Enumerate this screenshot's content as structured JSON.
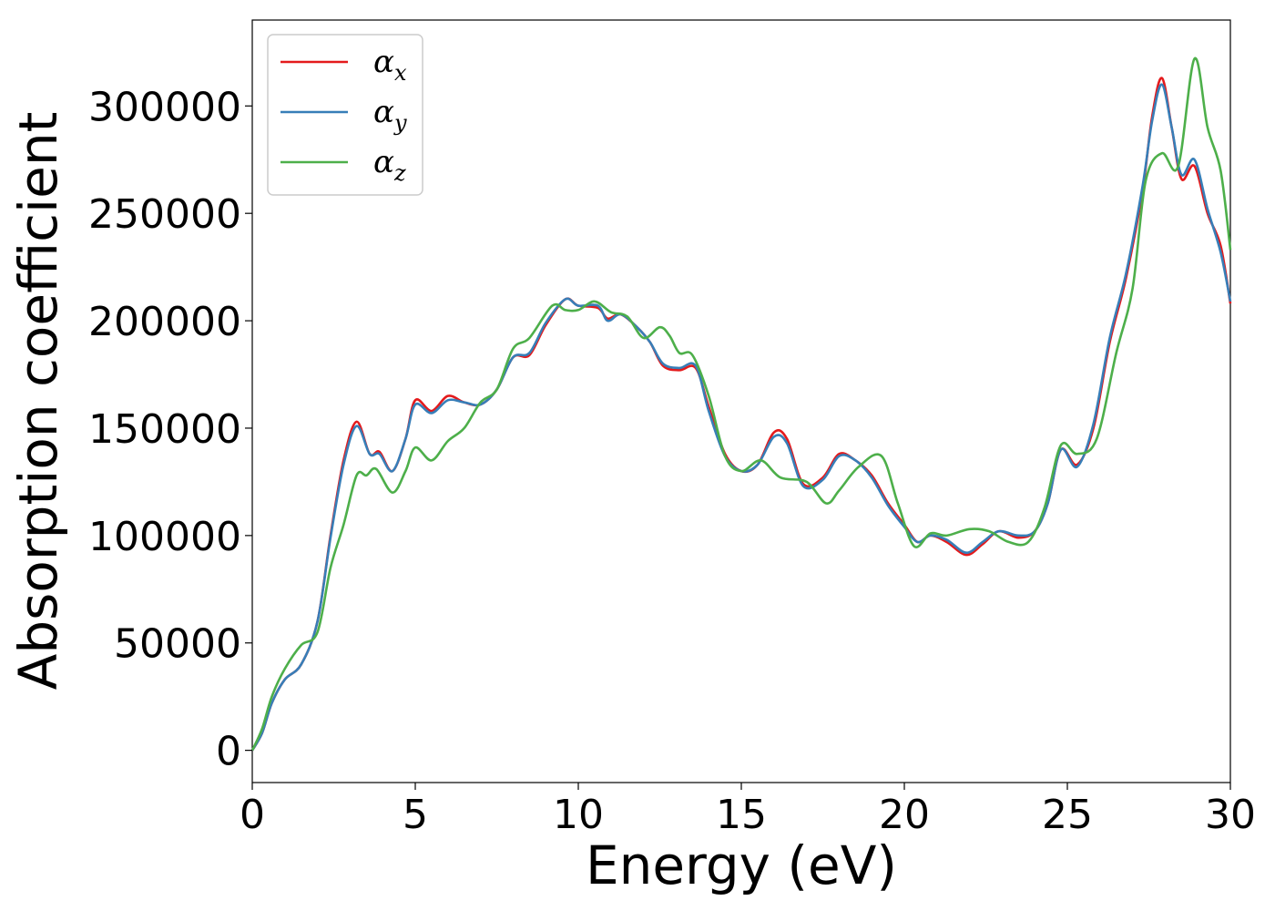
{
  "chart_data": {
    "type": "line",
    "xlabel": "Energy (eV)",
    "ylabel": "Absorption coefficient",
    "xlim": [
      0,
      30
    ],
    "ylim": [
      -15000,
      340000
    ],
    "xticks": [
      0,
      5,
      10,
      15,
      20,
      25,
      30
    ],
    "yticks": [
      0,
      50000,
      100000,
      150000,
      200000,
      250000,
      300000
    ],
    "xtick_labels": [
      "0",
      "5",
      "10",
      "15",
      "20",
      "25",
      "30"
    ],
    "ytick_labels": [
      "0",
      "50000",
      "100000",
      "150000",
      "200000",
      "250000",
      "300000"
    ],
    "grid": false,
    "legend": "upper-left",
    "series": [
      {
        "name": "αx",
        "symbol": "α",
        "sub": "x",
        "color": "#e41a1c",
        "points": [
          [
            0,
            0
          ],
          [
            0.3,
            8000
          ],
          [
            0.6,
            22000
          ],
          [
            1,
            33000
          ],
          [
            1.5,
            40000
          ],
          [
            2,
            60000
          ],
          [
            2.4,
            100000
          ],
          [
            2.8,
            135000
          ],
          [
            3.2,
            153000
          ],
          [
            3.6,
            138000
          ],
          [
            3.9,
            139000
          ],
          [
            4.3,
            130000
          ],
          [
            4.7,
            145000
          ],
          [
            5,
            163000
          ],
          [
            5.5,
            158000
          ],
          [
            6,
            165000
          ],
          [
            6.5,
            162000
          ],
          [
            7,
            161000
          ],
          [
            7.5,
            168000
          ],
          [
            8,
            183000
          ],
          [
            8.5,
            184000
          ],
          [
            9,
            198000
          ],
          [
            9.6,
            210000
          ],
          [
            10,
            207000
          ],
          [
            10.6,
            206000
          ],
          [
            10.9,
            201000
          ],
          [
            11.3,
            203000
          ],
          [
            11.8,
            197000
          ],
          [
            12.2,
            190000
          ],
          [
            12.6,
            179000
          ],
          [
            13.1,
            177000
          ],
          [
            13.6,
            178000
          ],
          [
            14,
            160000
          ],
          [
            14.5,
            138000
          ],
          [
            15,
            130000
          ],
          [
            15.5,
            133000
          ],
          [
            16,
            148000
          ],
          [
            16.4,
            145000
          ],
          [
            16.9,
            124000
          ],
          [
            17.5,
            127000
          ],
          [
            18,
            138000
          ],
          [
            18.5,
            135000
          ],
          [
            19,
            128000
          ],
          [
            19.5,
            115000
          ],
          [
            20,
            105000
          ],
          [
            20.4,
            97000
          ],
          [
            20.8,
            100000
          ],
          [
            21.3,
            97000
          ],
          [
            21.9,
            91000
          ],
          [
            22.4,
            96000
          ],
          [
            22.9,
            102000
          ],
          [
            23.5,
            99000
          ],
          [
            24,
            102000
          ],
          [
            24.4,
            115000
          ],
          [
            24.8,
            140000
          ],
          [
            25.3,
            133000
          ],
          [
            25.8,
            150000
          ],
          [
            26.3,
            190000
          ],
          [
            26.8,
            220000
          ],
          [
            27.3,
            260000
          ],
          [
            27.6,
            295000
          ],
          [
            27.9,
            313000
          ],
          [
            28.2,
            290000
          ],
          [
            28.5,
            266000
          ],
          [
            28.9,
            272000
          ],
          [
            29.3,
            250000
          ],
          [
            29.7,
            235000
          ],
          [
            30,
            208000
          ]
        ]
      },
      {
        "name": "αy",
        "symbol": "α",
        "sub": "y",
        "color": "#377eb8",
        "points": [
          [
            0,
            0
          ],
          [
            0.3,
            8000
          ],
          [
            0.6,
            22000
          ],
          [
            1,
            33000
          ],
          [
            1.5,
            40000
          ],
          [
            2,
            60000
          ],
          [
            2.4,
            99000
          ],
          [
            2.8,
            133000
          ],
          [
            3.2,
            151000
          ],
          [
            3.6,
            138000
          ],
          [
            3.9,
            138000
          ],
          [
            4.3,
            130000
          ],
          [
            4.7,
            145000
          ],
          [
            5,
            161000
          ],
          [
            5.5,
            157000
          ],
          [
            6,
            163000
          ],
          [
            6.5,
            162000
          ],
          [
            7,
            161000
          ],
          [
            7.5,
            168000
          ],
          [
            8,
            183000
          ],
          [
            8.5,
            185000
          ],
          [
            9,
            199000
          ],
          [
            9.6,
            210000
          ],
          [
            10,
            207000
          ],
          [
            10.6,
            207000
          ],
          [
            10.9,
            200000
          ],
          [
            11.3,
            203000
          ],
          [
            11.8,
            197000
          ],
          [
            12.2,
            190000
          ],
          [
            12.6,
            180000
          ],
          [
            13.1,
            178000
          ],
          [
            13.6,
            179000
          ],
          [
            14,
            158000
          ],
          [
            14.5,
            137000
          ],
          [
            15,
            130000
          ],
          [
            15.5,
            133000
          ],
          [
            16,
            146000
          ],
          [
            16.4,
            143000
          ],
          [
            16.9,
            123000
          ],
          [
            17.5,
            126000
          ],
          [
            18,
            137000
          ],
          [
            18.5,
            135000
          ],
          [
            19,
            127000
          ],
          [
            19.5,
            114000
          ],
          [
            20,
            104000
          ],
          [
            20.4,
            97000
          ],
          [
            20.8,
            100000
          ],
          [
            21.3,
            98000
          ],
          [
            21.9,
            92000
          ],
          [
            22.4,
            97000
          ],
          [
            22.9,
            102000
          ],
          [
            23.5,
            100000
          ],
          [
            24,
            102000
          ],
          [
            24.4,
            115000
          ],
          [
            24.8,
            140000
          ],
          [
            25.3,
            132000
          ],
          [
            25.8,
            152000
          ],
          [
            26.3,
            192000
          ],
          [
            26.8,
            222000
          ],
          [
            27.3,
            262000
          ],
          [
            27.6,
            293000
          ],
          [
            27.9,
            310000
          ],
          [
            28.2,
            290000
          ],
          [
            28.5,
            268000
          ],
          [
            28.9,
            275000
          ],
          [
            29.3,
            252000
          ],
          [
            29.7,
            232000
          ],
          [
            30,
            209000
          ]
        ]
      },
      {
        "name": "αz",
        "symbol": "α",
        "sub": "z",
        "color": "#4daf4a",
        "points": [
          [
            0,
            0
          ],
          [
            0.3,
            10000
          ],
          [
            0.6,
            25000
          ],
          [
            1,
            38000
          ],
          [
            1.5,
            49000
          ],
          [
            2,
            55000
          ],
          [
            2.4,
            85000
          ],
          [
            2.8,
            105000
          ],
          [
            3.2,
            128000
          ],
          [
            3.5,
            128000
          ],
          [
            3.8,
            131000
          ],
          [
            4.3,
            120000
          ],
          [
            4.7,
            130000
          ],
          [
            5,
            141000
          ],
          [
            5.5,
            135000
          ],
          [
            6,
            144000
          ],
          [
            6.5,
            150000
          ],
          [
            7,
            162000
          ],
          [
            7.5,
            168000
          ],
          [
            8,
            187000
          ],
          [
            8.5,
            192000
          ],
          [
            9.2,
            207000
          ],
          [
            9.6,
            205000
          ],
          [
            10,
            205000
          ],
          [
            10.5,
            209000
          ],
          [
            11,
            204000
          ],
          [
            11.5,
            202000
          ],
          [
            12,
            192000
          ],
          [
            12.5,
            197000
          ],
          [
            12.8,
            193000
          ],
          [
            13.1,
            185000
          ],
          [
            13.5,
            184000
          ],
          [
            14,
            165000
          ],
          [
            14.5,
            137000
          ],
          [
            15,
            130000
          ],
          [
            15.6,
            135000
          ],
          [
            16.2,
            127000
          ],
          [
            17,
            125000
          ],
          [
            17.6,
            115000
          ],
          [
            18,
            121000
          ],
          [
            18.6,
            132000
          ],
          [
            19.3,
            137000
          ],
          [
            19.8,
            115000
          ],
          [
            20.3,
            95000
          ],
          [
            20.8,
            101000
          ],
          [
            21.3,
            100000
          ],
          [
            22,
            103000
          ],
          [
            22.6,
            102000
          ],
          [
            23.2,
            97000
          ],
          [
            23.8,
            97000
          ],
          [
            24.3,
            113000
          ],
          [
            24.8,
            142000
          ],
          [
            25.3,
            138000
          ],
          [
            25.9,
            145000
          ],
          [
            26.5,
            185000
          ],
          [
            27,
            215000
          ],
          [
            27.4,
            265000
          ],
          [
            27.9,
            278000
          ],
          [
            28.4,
            272000
          ],
          [
            28.9,
            322000
          ],
          [
            29.3,
            290000
          ],
          [
            29.7,
            270000
          ],
          [
            30,
            233000
          ]
        ]
      }
    ]
  }
}
